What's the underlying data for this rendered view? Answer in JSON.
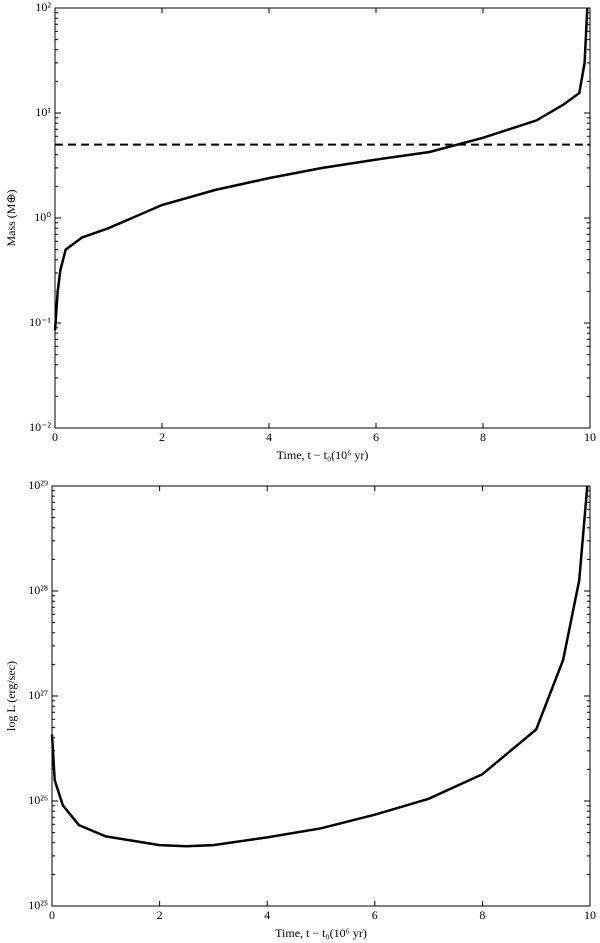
{
  "chart_data": [
    {
      "type": "line",
      "xlabel": "Time, t − t₀(10⁶ yr)",
      "ylabel": "Mass (M⊕)",
      "x": [
        0,
        0.05,
        0.1,
        0.2,
        0.5,
        1,
        2,
        3,
        4,
        5,
        6,
        7,
        8,
        9,
        9.5,
        9.8,
        9.9,
        9.95
      ],
      "series": [
        {
          "color": "#000000",
          "values": [
            0.085,
            0.2,
            0.32,
            0.5,
            0.65,
            0.8,
            1.33,
            1.85,
            2.4,
            3.0,
            3.6,
            4.25,
            5.8,
            8.5,
            12,
            15.5,
            30,
            100
          ]
        }
      ],
      "hline": 5,
      "xlim": [
        0,
        10
      ],
      "xticks": [
        0,
        2,
        4,
        6,
        8,
        10
      ],
      "ylim": [
        0.01,
        100
      ],
      "log_y": true,
      "yticks": [
        {
          "value": 0.01,
          "label": "10⁻²"
        },
        {
          "value": 0.1,
          "label": "10⁻¹"
        },
        {
          "value": 1,
          "label": "10⁰"
        },
        {
          "value": 10,
          "label": "10¹"
        },
        {
          "value": 100,
          "label": "10²"
        }
      ]
    },
    {
      "type": "line",
      "xlabel": "Time, t − t₀(10⁶ yr)",
      "ylabel": "log L (erg/sec)",
      "x": [
        0,
        0.05,
        0.2,
        0.5,
        1,
        2,
        2.5,
        3,
        4,
        5,
        6,
        7,
        8,
        9,
        9.5,
        9.8,
        9.95
      ],
      "series": [
        {
          "color": "#000000",
          "values": [
            4.3e+26,
            1.58e+26,
            9.1e+25,
            5.9e+25,
            4.6e+25,
            3.8e+25,
            3.7e+25,
            3.8e+25,
            4.5e+25,
            5.5e+25,
            7.4e+25,
            1.05e+26,
            1.8e+26,
            4.8e+26,
            2.2e+27,
            1.26e+28,
            1e+29
          ]
        }
      ],
      "xlim": [
        0,
        10
      ],
      "xticks": [
        0,
        2,
        4,
        6,
        8,
        10
      ],
      "ylim": [
        1e+25,
        1e+29
      ],
      "log_y": true,
      "yticks": [
        {
          "value": 1e+25,
          "label": "10²⁵"
        },
        {
          "value": 1e+26,
          "label": "10²⁶"
        },
        {
          "value": 1e+27,
          "label": "10²⁷"
        },
        {
          "value": 1e+28,
          "label": "10²⁸"
        },
        {
          "value": 1e+29,
          "label": "10²⁹"
        }
      ]
    }
  ]
}
